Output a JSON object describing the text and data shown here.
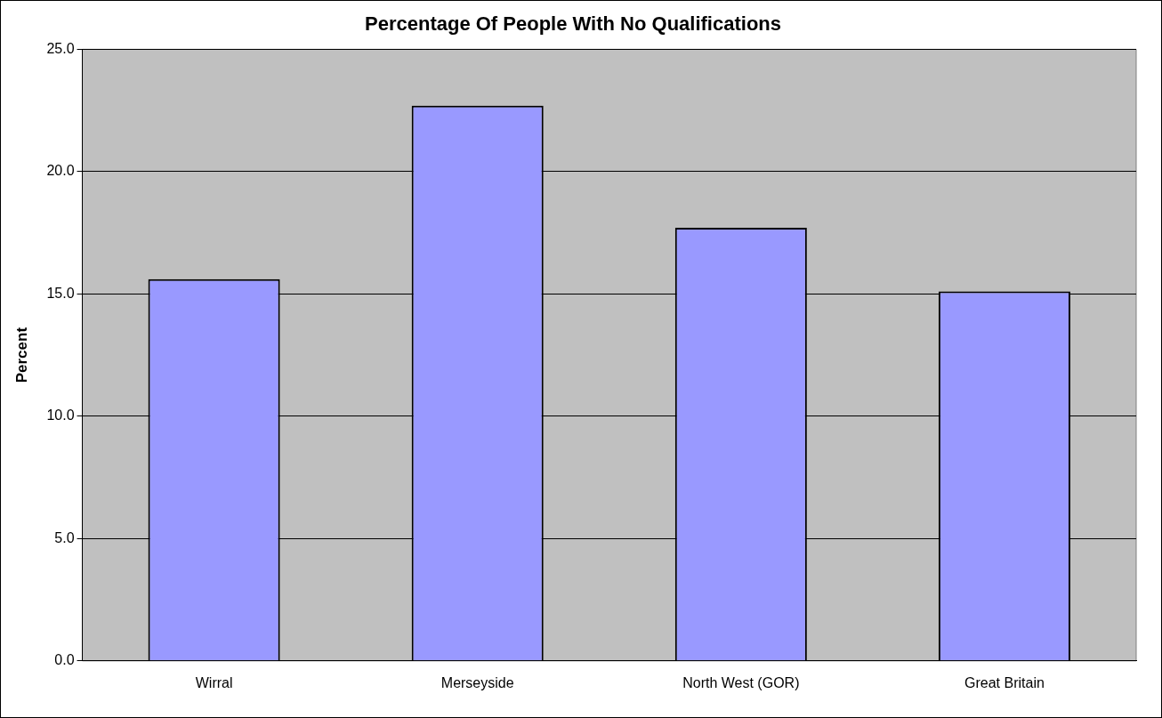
{
  "chart_data": {
    "type": "bar",
    "title": "Percentage Of People With No Qualifications",
    "ylabel": "Percent",
    "categories": [
      "Wirral",
      "Merseyside",
      "North West (GOR)",
      "Great Britain"
    ],
    "values": [
      15.6,
      22.7,
      17.7,
      15.1
    ],
    "color": "#9999ff",
    "ylim": [
      0,
      25
    ],
    "yticks": [
      {
        "value": 0,
        "label": "0.0"
      },
      {
        "value": 5,
        "label": "5.0"
      },
      {
        "value": 10,
        "label": "10.0"
      },
      {
        "value": 15,
        "label": "15.0"
      },
      {
        "value": 20,
        "label": "20.0"
      },
      {
        "value": 25,
        "label": "25.0"
      }
    ],
    "grid": "y",
    "legend": false
  }
}
